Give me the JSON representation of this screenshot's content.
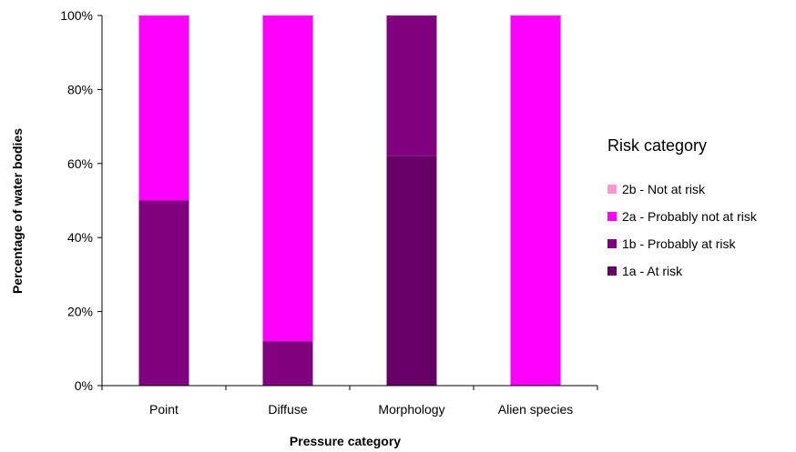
{
  "chart_data": {
    "type": "bar",
    "stacked": true,
    "title": "",
    "xlabel": "Pressure category",
    "ylabel": "Percentage of water bodies",
    "categories": [
      "Point",
      "Diffuse",
      "Morphology",
      "Alien species"
    ],
    "ylim": [
      0,
      100
    ],
    "yticks": [
      "0%",
      "20%",
      "40%",
      "60%",
      "80%",
      "100%"
    ],
    "ytick_values": [
      0,
      20,
      40,
      60,
      80,
      100
    ],
    "grid": false,
    "legend_title": "Risk category",
    "legend_position": "right",
    "legend_labels": [
      "2b - Not at risk",
      "2a - Probably not at risk",
      "1b - Probably at risk",
      "1a - At risk"
    ],
    "legend_colors": [
      "#ff99cc",
      "#ff00ff",
      "#800080",
      "#660066"
    ],
    "series": [
      {
        "name": "1a - At risk",
        "color": "#660066",
        "values": [
          0,
          0,
          62,
          0
        ]
      },
      {
        "name": "1b - Probably at risk",
        "color": "#800080",
        "values": [
          50,
          12,
          38,
          0
        ]
      },
      {
        "name": "2a - Probably not at risk",
        "color": "#ff00ff",
        "values": [
          50,
          88,
          0,
          100
        ]
      },
      {
        "name": "2b - Not at risk",
        "color": "#ff99cc",
        "values": [
          0,
          0,
          0,
          0
        ]
      }
    ]
  }
}
